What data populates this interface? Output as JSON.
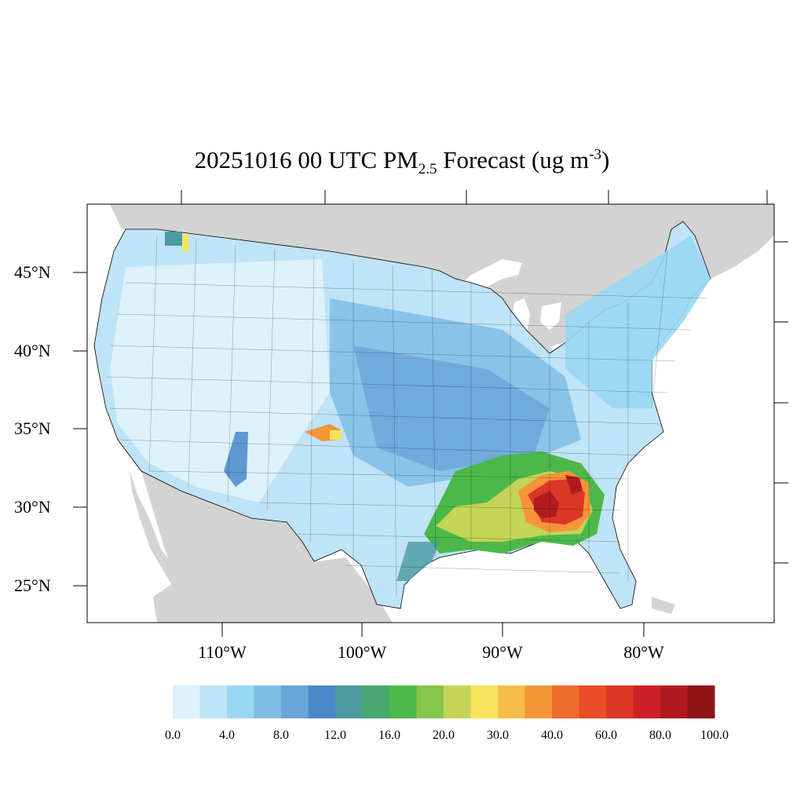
{
  "title": {
    "prefix": "20251016 00 UTC PM",
    "sub": "2.5",
    "middle": " Forecast (ug m",
    "sup": "-3",
    "suffix": ")"
  },
  "latitude_labels": [
    "45°N",
    "40°N",
    "35°N",
    "30°N",
    "25°N"
  ],
  "longitude_labels": [
    "110°W",
    "100°W",
    "90°W",
    "80°W"
  ],
  "colorbar": {
    "colors": [
      "#ddf1fa",
      "#bfe3f7",
      "#9ad7f3",
      "#80bde5",
      "#69a5d8",
      "#4a88c9",
      "#4a9a9f",
      "#46a86e",
      "#4cb84a",
      "#86c54a",
      "#c3d456",
      "#f6e55c",
      "#f7bd4a",
      "#f69538",
      "#f06a2c",
      "#e94e28",
      "#dc3726",
      "#cf2028",
      "#b11b20",
      "#8f1418"
    ],
    "tick_labels": [
      "0.0",
      "4.0",
      "8.0",
      "12.0",
      "16.0",
      "20.0",
      "30.0",
      "40.0",
      "60.0",
      "80.0",
      "100.0"
    ]
  },
  "map_colors": {
    "land_outside": "#d3d3d3",
    "water": "#ffffff",
    "border": "#000000"
  }
}
